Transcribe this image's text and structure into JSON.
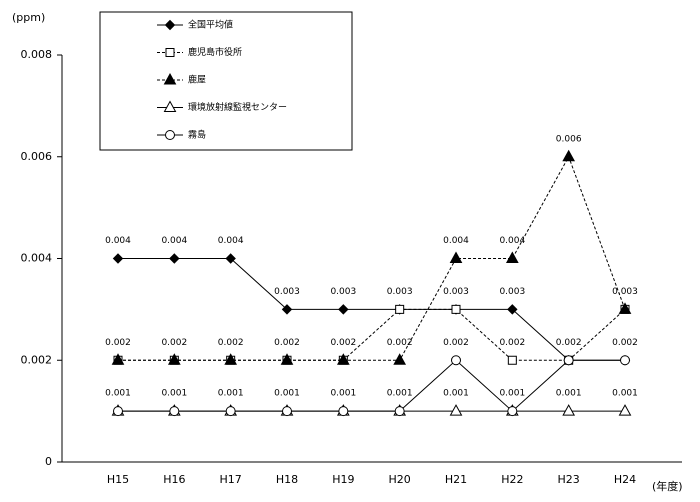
{
  "chart_data": {
    "type": "line",
    "y_label": "(ppm)",
    "x_label": "(年度)",
    "categories": [
      "H15",
      "H16",
      "H17",
      "H18",
      "H19",
      "H20",
      "H21",
      "H22",
      "H23",
      "H24"
    ],
    "ylim": [
      0,
      0.008
    ],
    "yticks": [
      0,
      0.002,
      0.004,
      0.006,
      0.008
    ],
    "grid": false,
    "legend": "upper left",
    "series": [
      {
        "name": "全国平均値",
        "color": "#000000",
        "marker": "diamond",
        "fill": true,
        "linestyle": "solid",
        "values": [
          0.004,
          0.004,
          0.004,
          0.003,
          0.003,
          0.003,
          0.003,
          0.003,
          0.002,
          0.002
        ]
      },
      {
        "name": "鹿児島市役所",
        "color": "#000000",
        "marker": "square",
        "fill": false,
        "linestyle": "dashed",
        "values": [
          0.002,
          0.002,
          0.002,
          0.002,
          0.002,
          0.003,
          0.003,
          0.002,
          0.002,
          0.003
        ]
      },
      {
        "name": "鹿屋",
        "color": "#000000",
        "marker": "triangle",
        "fill": true,
        "linestyle": "dashed",
        "values": [
          0.002,
          0.002,
          0.002,
          0.002,
          0.002,
          0.002,
          0.004,
          0.004,
          0.006,
          0.003
        ]
      },
      {
        "name": "環境放射線監視センター",
        "color": "#000000",
        "marker": "triangle",
        "fill": false,
        "linestyle": "solid",
        "values": [
          0.001,
          0.001,
          0.001,
          0.001,
          0.001,
          0.001,
          0.001,
          0.001,
          0.001,
          0.001
        ]
      },
      {
        "name": "霧島",
        "color": "#000000",
        "marker": "circle",
        "fill": false,
        "linestyle": "solid",
        "values": [
          0.001,
          0.001,
          0.001,
          0.001,
          0.001,
          0.001,
          0.002,
          0.001,
          0.002,
          0.002
        ]
      }
    ]
  }
}
